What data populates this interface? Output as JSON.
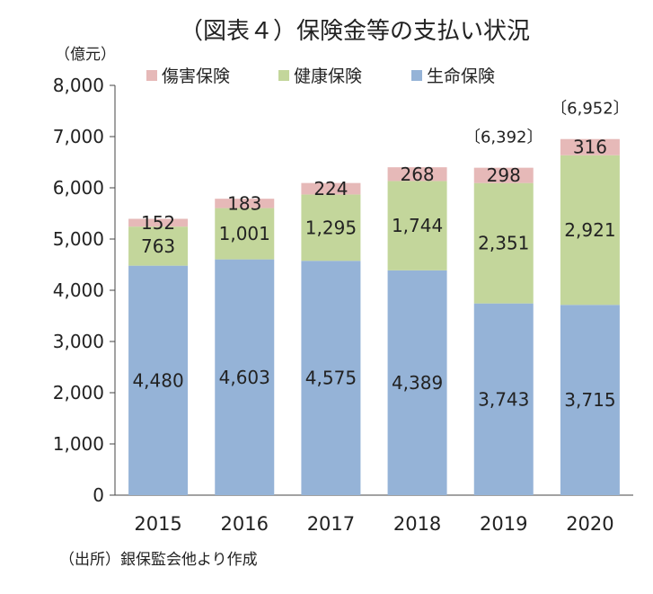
{
  "chart_data": {
    "type": "bar",
    "stacked": true,
    "title": "（図表４）保険金等の支払い状況",
    "unit_label": "（億元）",
    "source": "（出所）銀保監会他より作成",
    "categories": [
      "2015",
      "2016",
      "2017",
      "2018",
      "2019",
      "2020"
    ],
    "series": [
      {
        "name": "生命保険",
        "values": [
          4480,
          4603,
          4575,
          4389,
          3743,
          3715
        ],
        "color": "#95b3d7"
      },
      {
        "name": "健康保険",
        "values": [
          763,
          1001,
          1295,
          1744,
          2351,
          2921
        ],
        "color": "#c3d69b"
      },
      {
        "name": "傷害保険",
        "values": [
          152,
          183,
          224,
          268,
          298,
          316
        ],
        "color": "#e6b9b8"
      }
    ],
    "legend_order": [
      "傷害保険",
      "健康保険",
      "生命保険"
    ],
    "legend_position": "top",
    "totals": [
      {
        "category": "2019",
        "label": "〔6,392〕"
      },
      {
        "category": "2020",
        "label": "〔6,952〕"
      }
    ],
    "ylim": [
      0,
      8000
    ],
    "yticks": [
      0,
      1000,
      2000,
      3000,
      4000,
      5000,
      6000,
      7000,
      8000
    ],
    "grid": false,
    "xlabel": "",
    "ylabel": ""
  }
}
